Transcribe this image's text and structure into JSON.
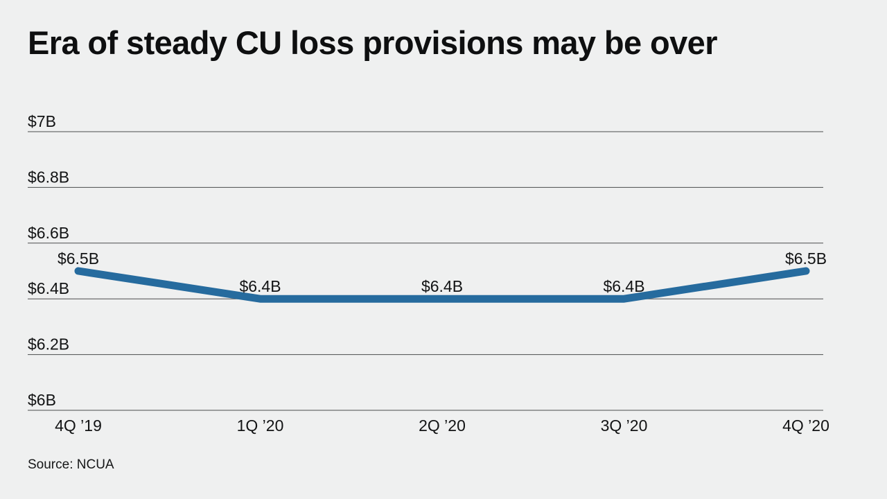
{
  "page": {
    "background_color": "#eff0f0"
  },
  "chart": {
    "title": "Era of steady CU loss provisions may be over",
    "source": "Source: NCUA"
  },
  "chart_data": {
    "type": "line",
    "title": "Era of steady CU loss provisions may be over",
    "xlabel": "",
    "ylabel": "",
    "categories": [
      "4Q ’19",
      "1Q ’20",
      "2Q ’20",
      "3Q ’20",
      "4Q ’20"
    ],
    "series": [
      {
        "name": "CU loss provisions",
        "values": [
          6.5,
          6.4,
          6.4,
          6.4,
          6.5
        ],
        "data_labels": [
          "$6.5B",
          "$6.4B",
          "$6.4B",
          "$6.4B",
          "$6.5B"
        ]
      }
    ],
    "unit": "billions of dollars",
    "ylim": [
      6.0,
      7.0
    ],
    "yticks": [
      {
        "label": "$7B",
        "value": 7.0
      },
      {
        "label": "$6.8B",
        "value": 6.8
      },
      {
        "label": "$6.6B",
        "value": 6.6
      },
      {
        "label": "$6.4B",
        "value": 6.4
      },
      {
        "label": "$6.2B",
        "value": 6.2
      },
      {
        "label": "$6B",
        "value": 6.0
      }
    ],
    "grid": "horizontal",
    "legend_position": "none",
    "line_color": "#266b9e",
    "gridline_color": "#4a4b4c",
    "text_color": "#121314",
    "source": "Source: NCUA"
  }
}
